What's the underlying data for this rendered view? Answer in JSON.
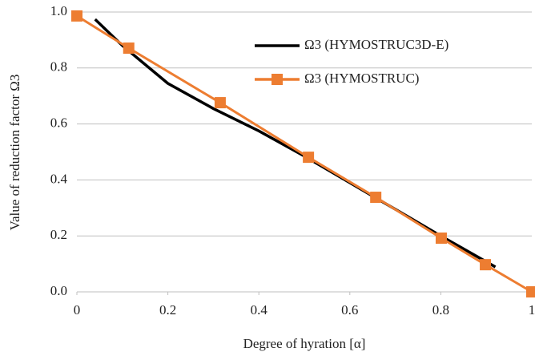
{
  "chart_data": {
    "type": "line",
    "xlabel": "Degree of hyration [α]",
    "ylabel": "Value of reduction factor Ω3",
    "xlim": [
      0,
      1
    ],
    "xticks": [
      0,
      0.2,
      0.4,
      0.6,
      0.8,
      1
    ],
    "ylim": [
      0,
      1
    ],
    "yticks": [
      {
        "value": 0,
        "label": "0.0"
      },
      {
        "value": 0.2,
        "label": "0.2"
      },
      {
        "value": 0.4,
        "label": "0.4"
      },
      {
        "value": 0.6,
        "label": "0.6"
      },
      {
        "value": 0.8,
        "label": "0.8"
      },
      {
        "value": 1,
        "label": "1.0"
      }
    ],
    "grid": true,
    "legend": "upper right",
    "series": [
      {
        "name": "Ω3 (HYMOSTRUC3D-E)",
        "color": "#000000",
        "marker": "none",
        "x": [
          0.04,
          0.1,
          0.2,
          0.3,
          0.4,
          0.5,
          0.6,
          0.7,
          0.8,
          0.92
        ],
        "values": [
          0.974,
          0.88,
          0.745,
          0.655,
          0.575,
          0.485,
          0.39,
          0.295,
          0.2,
          0.089
        ]
      },
      {
        "name": "Ω3 (HYMOSTRUC)",
        "color": "#ed7d31",
        "marker": "square",
        "x": [
          0,
          0.114,
          0.315,
          0.509,
          0.657,
          0.801,
          0.898,
          1
        ],
        "values": [
          0.986,
          0.871,
          0.676,
          0.481,
          0.338,
          0.192,
          0.097,
          0
        ]
      }
    ]
  }
}
